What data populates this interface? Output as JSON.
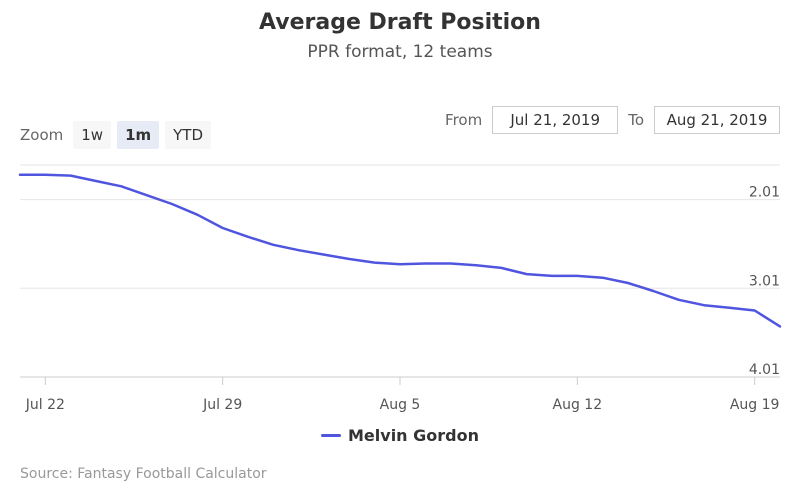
{
  "header": {
    "title": "Average Draft Position",
    "subtitle": "PPR format, 12 teams"
  },
  "zoom": {
    "label": "Zoom",
    "buttons": [
      {
        "label": "1w",
        "active": false
      },
      {
        "label": "1m",
        "active": true
      },
      {
        "label": "YTD",
        "active": false
      }
    ]
  },
  "range": {
    "from_label": "From",
    "from_value": "Jul 21, 2019",
    "to_label": "To",
    "to_value": "Aug 21, 2019"
  },
  "legend": {
    "label": "Melvin Gordon"
  },
  "source": "Source: Fantasy Football Calculator",
  "colors": {
    "series": "#5055e0",
    "grid": "#e6e6e6"
  },
  "chart_data": {
    "type": "line",
    "title": "Average Draft Position",
    "subtitle": "PPR format, 12 teams",
    "x_ticks": [
      {
        "date": "2019-07-22",
        "label": "Jul 22"
      },
      {
        "date": "2019-07-29",
        "label": "Jul 29"
      },
      {
        "date": "2019-08-05",
        "label": "Aug 5"
      },
      {
        "date": "2019-08-12",
        "label": "Aug 12"
      },
      {
        "date": "2019-08-19",
        "label": "Aug 19"
      }
    ],
    "y_ticks": [
      {
        "value": 2.01,
        "label": "2.01"
      },
      {
        "value": 3.01,
        "label": "3.01"
      },
      {
        "value": 4.01,
        "label": "4.01"
      }
    ],
    "xlim": [
      "2019-07-21",
      "2019-08-20"
    ],
    "ylim": [
      1.62,
      4.01
    ],
    "y_reversed": true,
    "grid": true,
    "legend_position": "bottom-center",
    "series": [
      {
        "name": "Melvin Gordon",
        "x": [
          "2019-07-21",
          "2019-07-22",
          "2019-07-23",
          "2019-07-24",
          "2019-07-25",
          "2019-07-26",
          "2019-07-27",
          "2019-07-28",
          "2019-07-29",
          "2019-07-30",
          "2019-07-31",
          "2019-08-01",
          "2019-08-02",
          "2019-08-03",
          "2019-08-04",
          "2019-08-05",
          "2019-08-06",
          "2019-08-07",
          "2019-08-08",
          "2019-08-09",
          "2019-08-10",
          "2019-08-11",
          "2019-08-12",
          "2019-08-13",
          "2019-08-14",
          "2019-08-15",
          "2019-08-16",
          "2019-08-17",
          "2019-08-18",
          "2019-08-19",
          "2019-08-20"
        ],
        "values": [
          1.73,
          1.73,
          1.74,
          1.8,
          1.86,
          1.96,
          2.06,
          2.18,
          2.33,
          2.43,
          2.52,
          2.58,
          2.63,
          2.68,
          2.72,
          2.74,
          2.73,
          2.73,
          2.75,
          2.78,
          2.85,
          2.87,
          2.87,
          2.89,
          2.95,
          3.04,
          3.14,
          3.2,
          3.23,
          3.26,
          3.44
        ]
      }
    ]
  }
}
